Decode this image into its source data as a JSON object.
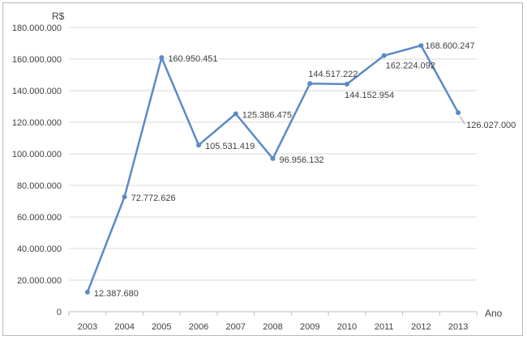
{
  "chart_data": {
    "type": "line",
    "title": "",
    "ylabel": "R$",
    "xlabel": "Ano",
    "categories": [
      "2003",
      "2004",
      "2005",
      "2006",
      "2007",
      "2008",
      "2009",
      "2010",
      "2011",
      "2012",
      "2013"
    ],
    "series": [
      {
        "values": [
          12387680,
          72772626,
          160950451,
          105531419,
          125386475,
          96956132,
          144517222,
          144152954,
          162224092,
          168600247,
          126027000
        ],
        "labels": [
          "12.387.680",
          "72.772.626",
          "160.950.451",
          "105.531.419",
          "125.386.475",
          "96.956.132",
          "144.517.222",
          "144.152.954",
          "162.224.092",
          "168.600.247",
          "126.027.000"
        ]
      }
    ],
    "ylim": [
      0,
      180000000
    ],
    "y_ticks": [
      0,
      20000000,
      40000000,
      60000000,
      80000000,
      100000000,
      120000000,
      140000000,
      160000000,
      180000000
    ],
    "y_tick_labels": [
      "0",
      "20.000.000",
      "40.000.000",
      "60.000.000",
      "80.000.000",
      "100.000.000",
      "120.000.000",
      "140.000.000",
      "160.000.000",
      "180.000.000"
    ],
    "grid": true,
    "legend": "none",
    "colors": {
      "line": "#5b8ac6",
      "grid": "#d9d9d9",
      "axis": "#bfbfbf"
    }
  }
}
